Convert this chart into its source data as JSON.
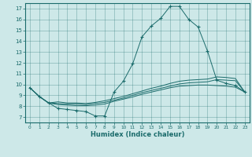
{
  "xlabel": "Humidex (Indice chaleur)",
  "xlim": [
    -0.5,
    23.5
  ],
  "ylim": [
    6.5,
    17.5
  ],
  "yticks": [
    7,
    8,
    9,
    10,
    11,
    12,
    13,
    14,
    15,
    16,
    17
  ],
  "xticks": [
    0,
    1,
    2,
    3,
    4,
    5,
    6,
    7,
    8,
    9,
    10,
    11,
    12,
    13,
    14,
    15,
    16,
    17,
    18,
    19,
    20,
    21,
    22,
    23
  ],
  "bg_color": "#cde8e8",
  "line_color": "#1a6b6b",
  "lines": [
    {
      "x": [
        0,
        1,
        2,
        3,
        4,
        5,
        6,
        7,
        8,
        9,
        10,
        11,
        12,
        13,
        14,
        15,
        16,
        17,
        18,
        19,
        20,
        21,
        22,
        23
      ],
      "y": [
        9.7,
        8.9,
        8.3,
        7.8,
        7.7,
        7.6,
        7.5,
        7.1,
        7.1,
        9.3,
        10.3,
        11.9,
        14.4,
        15.4,
        16.1,
        17.2,
        17.2,
        16.0,
        15.3,
        13.1,
        10.4,
        10.1,
        9.9,
        9.3
      ],
      "marker": "+"
    },
    {
      "x": [
        0,
        1,
        2,
        3,
        4,
        5,
        6,
        7,
        8,
        9,
        10,
        11,
        12,
        13,
        14,
        15,
        16,
        17,
        18,
        19,
        20,
        21,
        22,
        23
      ],
      "y": [
        9.7,
        8.9,
        8.3,
        8.15,
        8.1,
        8.05,
        8.05,
        8.1,
        8.2,
        8.45,
        8.65,
        8.85,
        9.1,
        9.3,
        9.5,
        9.7,
        9.85,
        9.9,
        9.95,
        9.95,
        9.9,
        9.85,
        9.75,
        9.3
      ],
      "marker": null
    },
    {
      "x": [
        0,
        1,
        2,
        3,
        4,
        5,
        6,
        7,
        8,
        9,
        10,
        11,
        12,
        13,
        14,
        15,
        16,
        17,
        18,
        19,
        20,
        21,
        22,
        23
      ],
      "y": [
        9.7,
        8.9,
        8.3,
        8.25,
        8.2,
        8.2,
        8.15,
        8.25,
        8.35,
        8.55,
        8.75,
        9.0,
        9.25,
        9.45,
        9.65,
        9.85,
        10.05,
        10.15,
        10.2,
        10.25,
        10.45,
        10.4,
        10.35,
        9.3
      ],
      "marker": null
    },
    {
      "x": [
        0,
        1,
        2,
        3,
        4,
        5,
        6,
        7,
        8,
        9,
        10,
        11,
        12,
        13,
        14,
        15,
        16,
        17,
        18,
        19,
        20,
        21,
        22,
        23
      ],
      "y": [
        9.7,
        8.9,
        8.3,
        8.4,
        8.3,
        8.3,
        8.25,
        8.35,
        8.5,
        8.7,
        8.9,
        9.15,
        9.4,
        9.65,
        9.85,
        10.1,
        10.3,
        10.4,
        10.45,
        10.5,
        10.7,
        10.65,
        10.55,
        9.3
      ],
      "marker": null
    }
  ]
}
